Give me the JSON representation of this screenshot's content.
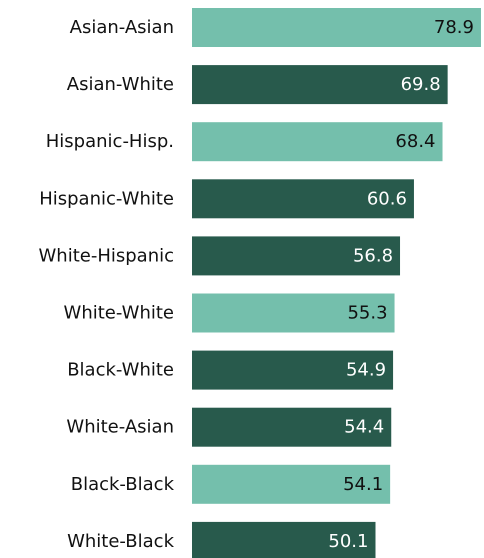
{
  "chart_data": {
    "type": "bar",
    "orientation": "horizontal",
    "title": "",
    "xlabel": "",
    "ylabel": "",
    "xlim": [
      0,
      80
    ],
    "grid": false,
    "legend": "none",
    "categories": [
      "Asian-Asian",
      "Asian-White",
      "Hispanic-Hisp.",
      "Hispanic-White",
      "White-Hispanic",
      "White-White",
      "Black-White",
      "White-Asian",
      "Black-Black",
      "White-Black"
    ],
    "values": [
      78.9,
      69.8,
      68.4,
      60.6,
      56.8,
      55.3,
      54.9,
      54.4,
      54.1,
      50.1
    ],
    "value_labels": [
      "78.9",
      "69.8",
      "68.4",
      "60.6",
      "56.8",
      "55.3",
      "54.9",
      "54.4",
      "54.1",
      "50.1"
    ],
    "bar_kinds": [
      "same",
      "cross",
      "same",
      "cross",
      "cross",
      "same",
      "cross",
      "cross",
      "same",
      "cross"
    ],
    "colors": {
      "same": "#74bfac",
      "cross": "#285a4c",
      "label_on_same": "#111111",
      "label_on_cross": "#ffffff",
      "category_text": "#111111"
    }
  }
}
